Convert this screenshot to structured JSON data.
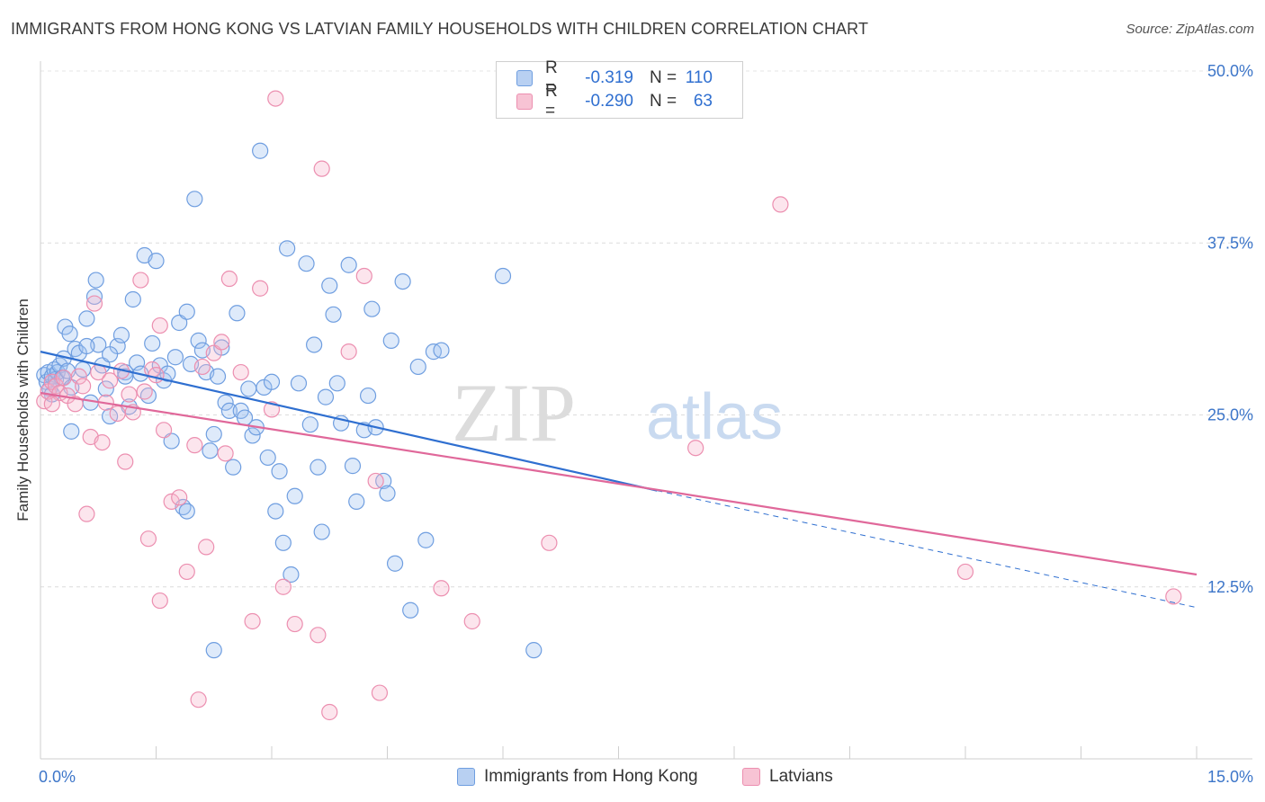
{
  "title": "IMMIGRANTS FROM HONG KONG VS LATVIAN FAMILY HOUSEHOLDS WITH CHILDREN CORRELATION CHART",
  "source": "Source: ZipAtlas.com",
  "watermark": {
    "zip": "ZIP",
    "atlas": "atlas"
  },
  "legend": {
    "rows": [
      {
        "r_label": "R =",
        "r_value": "-0.319",
        "n_label": "N =",
        "n_value": "110",
        "fill": "#b8d0f2",
        "stroke": "#6f9ee0"
      },
      {
        "r_label": "R =",
        "r_value": "-0.290",
        "n_label": "N =",
        "n_value": "63",
        "fill": "#f7c3d4",
        "stroke": "#ec8fb0"
      }
    ]
  },
  "colors": {
    "blue_line": "#2f6fd0",
    "pink_line": "#e0689a",
    "blue_stroke": "#6f9ee0",
    "pink_stroke": "#ec8fb0",
    "axis_text": "#3d76c9"
  },
  "chart_data": {
    "type": "scatter",
    "title": "IMMIGRANTS FROM HONG KONG VS LATVIAN FAMILY HOUSEHOLDS WITH CHILDREN CORRELATION CHART",
    "xlabel": "",
    "ylabel": "Family Households with Children",
    "xlim": [
      0,
      15
    ],
    "ylim": [
      0,
      50
    ],
    "x_tick_labels": [
      "0.0%",
      "15.0%"
    ],
    "y_ticks": [
      12.5,
      25.0,
      37.5,
      50.0
    ],
    "y_tick_labels": [
      "12.5%",
      "25.0%",
      "37.5%",
      "50.0%"
    ],
    "grid": true,
    "legend_position": "top-center",
    "series": [
      {
        "name": "Immigrants from Hong Kong",
        "color": "#6f9ee0",
        "trend": {
          "x": [
            0,
            8.0
          ],
          "y": [
            29.6,
            19.5
          ],
          "dashed_to": [
            15.0,
            11.0
          ]
        },
        "points": [
          [
            0.05,
            27.9
          ],
          [
            0.08,
            27.4
          ],
          [
            0.1,
            28.1
          ],
          [
            0.12,
            26.9
          ],
          [
            0.15,
            27.8
          ],
          [
            0.18,
            28.3
          ],
          [
            0.2,
            27.6
          ],
          [
            0.22,
            28.1
          ],
          [
            0.25,
            28.6
          ],
          [
            0.28,
            27.7
          ],
          [
            0.3,
            29.1
          ],
          [
            0.32,
            31.4
          ],
          [
            0.35,
            28.2
          ],
          [
            0.38,
            30.9
          ],
          [
            0.4,
            23.8
          ],
          [
            0.45,
            29.8
          ],
          [
            0.5,
            29.5
          ],
          [
            0.55,
            28.3
          ],
          [
            0.6,
            32.0
          ],
          [
            0.65,
            25.9
          ],
          [
            0.7,
            33.6
          ],
          [
            0.72,
            34.8
          ],
          [
            0.75,
            30.1
          ],
          [
            0.8,
            28.6
          ],
          [
            0.85,
            26.9
          ],
          [
            0.9,
            24.9
          ],
          [
            1.0,
            30.0
          ],
          [
            1.05,
            30.8
          ],
          [
            1.1,
            28.1
          ],
          [
            1.15,
            25.6
          ],
          [
            1.2,
            33.4
          ],
          [
            1.25,
            28.8
          ],
          [
            1.3,
            28.0
          ],
          [
            1.35,
            36.6
          ],
          [
            1.4,
            26.4
          ],
          [
            1.45,
            30.2
          ],
          [
            1.5,
            36.2
          ],
          [
            1.55,
            28.6
          ],
          [
            1.6,
            27.5
          ],
          [
            1.65,
            28.0
          ],
          [
            1.7,
            23.1
          ],
          [
            1.75,
            29.2
          ],
          [
            1.8,
            31.7
          ],
          [
            1.85,
            18.3
          ],
          [
            1.9,
            32.5
          ],
          [
            1.95,
            28.7
          ],
          [
            2.0,
            40.7
          ],
          [
            2.05,
            30.4
          ],
          [
            2.1,
            29.7
          ],
          [
            2.15,
            28.1
          ],
          [
            2.2,
            22.4
          ],
          [
            2.25,
            23.6
          ],
          [
            2.3,
            27.8
          ],
          [
            2.35,
            29.9
          ],
          [
            2.4,
            25.9
          ],
          [
            2.45,
            25.3
          ],
          [
            2.5,
            21.2
          ],
          [
            2.55,
            32.4
          ],
          [
            2.6,
            25.3
          ],
          [
            2.65,
            24.8
          ],
          [
            2.7,
            26.9
          ],
          [
            2.75,
            23.5
          ],
          [
            2.8,
            24.1
          ],
          [
            2.85,
            44.2
          ],
          [
            2.9,
            27.0
          ],
          [
            2.95,
            21.9
          ],
          [
            3.0,
            27.4
          ],
          [
            3.05,
            18.0
          ],
          [
            3.1,
            20.9
          ],
          [
            3.15,
            15.7
          ],
          [
            3.2,
            37.1
          ],
          [
            3.25,
            13.4
          ],
          [
            3.3,
            19.1
          ],
          [
            3.35,
            27.3
          ],
          [
            3.45,
            36.0
          ],
          [
            3.5,
            24.3
          ],
          [
            3.55,
            30.1
          ],
          [
            3.6,
            21.2
          ],
          [
            3.65,
            16.5
          ],
          [
            3.7,
            26.3
          ],
          [
            3.75,
            34.4
          ],
          [
            3.8,
            32.3
          ],
          [
            3.85,
            27.3
          ],
          [
            3.9,
            24.4
          ],
          [
            4.0,
            35.9
          ],
          [
            4.05,
            21.3
          ],
          [
            4.1,
            18.7
          ],
          [
            4.2,
            23.9
          ],
          [
            4.25,
            26.4
          ],
          [
            4.3,
            32.7
          ],
          [
            4.35,
            24.1
          ],
          [
            4.45,
            20.2
          ],
          [
            4.5,
            19.3
          ],
          [
            4.55,
            30.4
          ],
          [
            4.6,
            14.2
          ],
          [
            4.7,
            34.7
          ],
          [
            4.8,
            10.8
          ],
          [
            4.9,
            28.5
          ],
          [
            5.0,
            15.9
          ],
          [
            5.1,
            29.6
          ],
          [
            5.2,
            29.7
          ],
          [
            6.0,
            35.1
          ],
          [
            6.4,
            7.9
          ],
          [
            2.25,
            7.9
          ],
          [
            1.9,
            18.0
          ],
          [
            0.15,
            26.5
          ],
          [
            0.4,
            27.0
          ],
          [
            0.6,
            30.0
          ],
          [
            1.1,
            27.8
          ],
          [
            0.9,
            29.4
          ]
        ]
      },
      {
        "name": "Latvians",
        "color": "#ec8fb0",
        "trend": {
          "x": [
            0,
            15.0
          ],
          "y": [
            26.6,
            13.4
          ]
        },
        "points": [
          [
            0.05,
            26.0
          ],
          [
            0.1,
            26.7
          ],
          [
            0.15,
            27.4
          ],
          [
            0.2,
            27.1
          ],
          [
            0.25,
            26.6
          ],
          [
            0.3,
            27.7
          ],
          [
            0.35,
            26.4
          ],
          [
            0.45,
            25.8
          ],
          [
            0.5,
            27.8
          ],
          [
            0.55,
            27.1
          ],
          [
            0.6,
            17.8
          ],
          [
            0.65,
            23.4
          ],
          [
            0.7,
            33.1
          ],
          [
            0.75,
            28.1
          ],
          [
            0.8,
            23.0
          ],
          [
            0.85,
            25.9
          ],
          [
            0.9,
            27.5
          ],
          [
            1.0,
            25.1
          ],
          [
            1.05,
            28.2
          ],
          [
            1.1,
            21.6
          ],
          [
            1.15,
            26.5
          ],
          [
            1.2,
            25.2
          ],
          [
            1.3,
            34.8
          ],
          [
            1.35,
            26.7
          ],
          [
            1.4,
            16.0
          ],
          [
            1.45,
            28.3
          ],
          [
            1.5,
            27.9
          ],
          [
            1.55,
            31.5
          ],
          [
            1.6,
            23.9
          ],
          [
            1.7,
            18.7
          ],
          [
            1.8,
            19.0
          ],
          [
            1.9,
            13.6
          ],
          [
            2.0,
            22.8
          ],
          [
            2.05,
            4.3
          ],
          [
            2.1,
            28.5
          ],
          [
            2.15,
            15.4
          ],
          [
            2.25,
            29.5
          ],
          [
            2.35,
            30.3
          ],
          [
            2.4,
            22.2
          ],
          [
            2.45,
            34.9
          ],
          [
            2.6,
            28.1
          ],
          [
            2.75,
            10.0
          ],
          [
            2.85,
            34.2
          ],
          [
            3.0,
            25.4
          ],
          [
            3.15,
            12.5
          ],
          [
            3.3,
            9.8
          ],
          [
            3.6,
            9.0
          ],
          [
            3.65,
            42.9
          ],
          [
            3.75,
            3.4
          ],
          [
            4.0,
            29.6
          ],
          [
            4.2,
            35.1
          ],
          [
            4.35,
            20.2
          ],
          [
            4.4,
            4.8
          ],
          [
            5.2,
            12.4
          ],
          [
            5.6,
            10.0
          ],
          [
            6.6,
            15.7
          ],
          [
            8.5,
            22.6
          ],
          [
            9.6,
            40.3
          ],
          [
            12.0,
            13.6
          ],
          [
            14.7,
            11.8
          ],
          [
            3.05,
            48.0
          ],
          [
            1.55,
            11.5
          ],
          [
            0.15,
            25.8
          ]
        ]
      }
    ]
  },
  "bottom_legend": [
    {
      "label": "Immigrants from Hong Kong",
      "fill": "#b8d0f2",
      "stroke": "#6f9ee0"
    },
    {
      "label": "Latvians",
      "fill": "#f7c3d4",
      "stroke": "#ec8fb0"
    }
  ]
}
